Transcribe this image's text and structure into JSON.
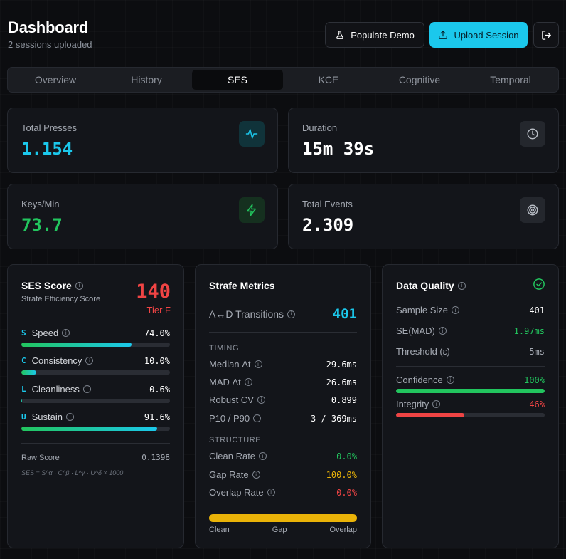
{
  "header": {
    "title": "Dashboard",
    "subtitle": "2 sessions uploaded",
    "populate_label": "Populate Demo",
    "upload_label": "Upload Session"
  },
  "tabs": [
    {
      "label": "Overview",
      "active": false
    },
    {
      "label": "History",
      "active": false
    },
    {
      "label": "SES",
      "active": true
    },
    {
      "label": "KCE",
      "active": false
    },
    {
      "label": "Cognitive",
      "active": false
    },
    {
      "label": "Temporal",
      "active": false
    }
  ],
  "stats": {
    "total_presses": {
      "label": "Total Presses",
      "value": "1.154",
      "color": "#1bc8ec",
      "icon": "activity-icon"
    },
    "duration": {
      "label": "Duration",
      "value": "15m 39s",
      "color": "#ffffff",
      "icon": "clock-icon"
    },
    "keys_per_min": {
      "label": "Keys/Min",
      "value": "73.7",
      "color": "#22c55e",
      "icon": "zap-icon"
    },
    "total_events": {
      "label": "Total Events",
      "value": "2.309",
      "color": "#ffffff",
      "icon": "target-icon"
    }
  },
  "ses": {
    "title": "SES Score",
    "subtitle": "Strafe Efficiency Score",
    "score": "140",
    "tier": "Tier F",
    "metrics": [
      {
        "letter": "S",
        "label": "Speed",
        "value": "74.0%",
        "fraction": 0.74
      },
      {
        "letter": "C",
        "label": "Consistency",
        "value": "10.0%",
        "fraction": 0.1
      },
      {
        "letter": "L",
        "label": "Cleanliness",
        "value": "0.6%",
        "fraction": 0.006
      },
      {
        "letter": "U",
        "label": "Sustain",
        "value": "91.6%",
        "fraction": 0.916
      }
    ],
    "raw_label": "Raw Score",
    "raw_value": "0.1398",
    "formula": "SES = S^α · C^β · L^γ · U^δ × 1000"
  },
  "strafe": {
    "title": "Strafe Metrics",
    "transitions_label": "A↔D Transitions",
    "transitions_value": "401",
    "timing_head": "TIMING",
    "timing": [
      {
        "label": "Median Δt",
        "value": "29.6ms"
      },
      {
        "label": "MAD Δt",
        "value": "26.6ms"
      },
      {
        "label": "Robust CV",
        "value": "0.899"
      },
      {
        "label": "P10 / P90",
        "value": "3 / 369ms"
      }
    ],
    "structure_head": "STRUCTURE",
    "structure": [
      {
        "label": "Clean Rate",
        "value": "0.0%",
        "color": "#22c55e"
      },
      {
        "label": "Gap Rate",
        "value": "100.0%",
        "color": "#eab308"
      },
      {
        "label": "Overlap Rate",
        "value": "0.0%",
        "color": "#ef4444"
      }
    ],
    "bar": {
      "clean": 0.0,
      "gap": 1.0,
      "overlap": 0.0
    },
    "legend": [
      "Clean",
      "Gap",
      "Overlap"
    ]
  },
  "quality": {
    "title": "Data Quality",
    "rows": [
      {
        "label": "Sample Size",
        "value": "401",
        "color": "#ffffff",
        "info": true
      },
      {
        "label": "SE(MAD)",
        "value": "1.97ms",
        "color": "#22c55e",
        "info": true
      },
      {
        "label": "Threshold (ε)",
        "value": "5ms",
        "color": "#a5aab3",
        "info": false
      }
    ],
    "confidence_label": "Confidence",
    "confidence_value": "100%",
    "confidence_fraction": 1.0,
    "integrity_label": "Integrity",
    "integrity_value": "46%",
    "integrity_fraction": 0.46
  }
}
